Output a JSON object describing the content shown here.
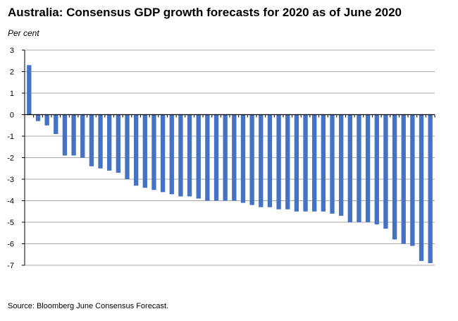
{
  "chart_data": {
    "type": "bar",
    "title": "Australia: Consensus GDP growth forecasts for 2020 as of June 2020",
    "ylabel": "Per cent",
    "xlabel": "",
    "source": "Source: Bloomberg June Consensus Forecast.",
    "ylim": [
      -7,
      3
    ],
    "yticks": [
      "3",
      "2",
      "1",
      "0",
      "-1",
      "-2",
      "-3",
      "-4",
      "-5",
      "-6",
      "-7"
    ],
    "ytick_values": [
      3,
      2,
      1,
      0,
      -1,
      -2,
      -3,
      -4,
      -5,
      -6,
      -7
    ],
    "grid": true,
    "bar_color": "#4472C4",
    "values": [
      2.3,
      -0.3,
      -0.5,
      -0.9,
      -1.9,
      -1.9,
      -2.0,
      -2.4,
      -2.5,
      -2.6,
      -2.7,
      -3.0,
      -3.3,
      -3.4,
      -3.5,
      -3.6,
      -3.7,
      -3.8,
      -3.8,
      -3.9,
      -4.0,
      -4.0,
      -4.0,
      -4.0,
      -4.1,
      -4.2,
      -4.3,
      -4.3,
      -4.4,
      -4.4,
      -4.5,
      -4.5,
      -4.5,
      -4.5,
      -4.6,
      -4.7,
      -5.0,
      -5.0,
      -5.0,
      -5.1,
      -5.3,
      -5.8,
      -6.0,
      -6.1,
      -6.8,
      -6.9
    ]
  }
}
